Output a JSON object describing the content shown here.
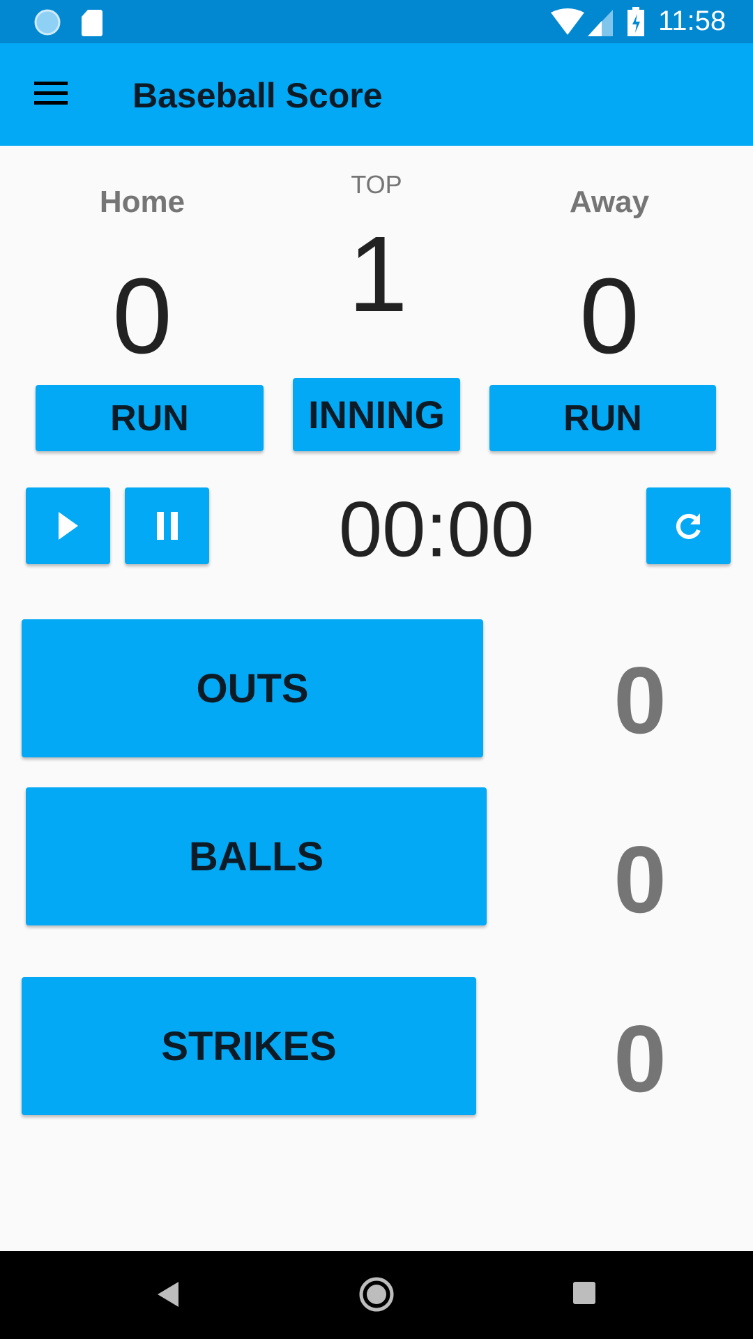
{
  "status_bar": {
    "time": "11:58",
    "icons": [
      "sync-icon",
      "sd-card-icon",
      "wifi-icon",
      "signal-icon",
      "battery-charging-icon"
    ]
  },
  "app_bar": {
    "title": "Baseball Score",
    "menu_icon": "hamburger-menu-icon"
  },
  "scoreboard": {
    "home_label": "Home",
    "away_label": "Away",
    "half": "TOP",
    "inning": "1",
    "home_score": "0",
    "away_score": "0",
    "home_run_label": "RUN",
    "inning_label": "INNING",
    "away_run_label": "RUN"
  },
  "timer": {
    "value": "00:00",
    "play_icon": "play-icon",
    "pause_icon": "pause-icon",
    "reset_icon": "refresh-icon"
  },
  "counters": [
    {
      "label": "OUTS",
      "value": "0"
    },
    {
      "label": "BALLS",
      "value": "0"
    },
    {
      "label": "STRIKES",
      "value": "0"
    }
  ],
  "colors": {
    "primary": "#03A9F4",
    "primary_dark": "#0288D1",
    "count_text": "#757575"
  }
}
